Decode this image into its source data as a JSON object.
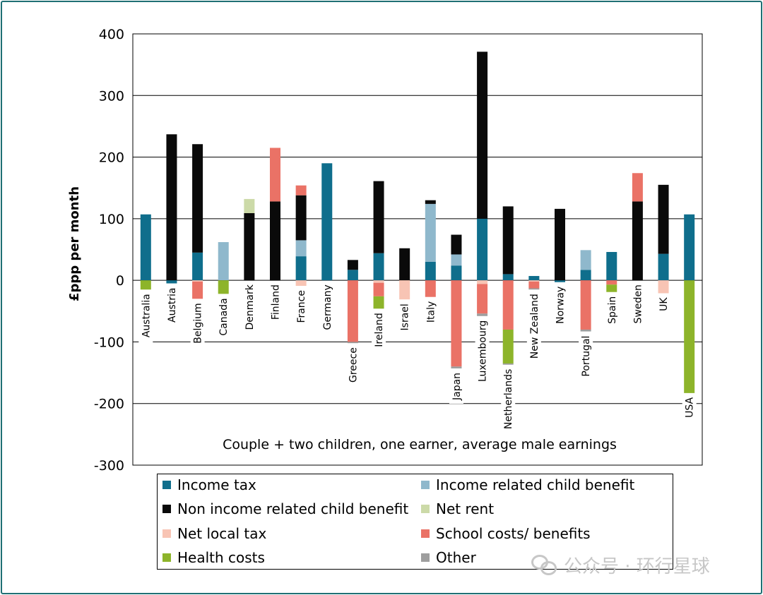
{
  "chart_data": {
    "type": "bar",
    "stacked": true,
    "ylabel": "£ppp per month",
    "subtitle": "Couple + two children, one earner, average male earnings",
    "ylim": [
      -300,
      400
    ],
    "yticks": [
      400,
      300,
      200,
      100,
      0,
      -100,
      -200,
      -300
    ],
    "ytick_labels": [
      "400",
      "300",
      "200",
      "100",
      "0",
      "-100",
      "-200",
      "-300"
    ],
    "grid": true,
    "categories": [
      "Australia",
      "Austria",
      "Belgium",
      "Canada",
      "Denmark",
      "Finland",
      "France",
      "Germany",
      "Greece",
      "Ireland",
      "Israel",
      "Italy",
      "Japan",
      "Luxembourg",
      "Netherlands",
      "New Zealand",
      "Norway",
      "Portugal",
      "Spain",
      "Sweden",
      "UK",
      "USA"
    ],
    "series": [
      {
        "name": "Income tax",
        "color": "#0f6e8c",
        "values": [
          107,
          -5,
          45,
          0,
          0,
          0,
          39,
          190,
          17,
          44,
          0,
          30,
          24,
          100,
          10,
          7,
          -3,
          17,
          46,
          0,
          43,
          107
        ]
      },
      {
        "name": "Income related child benefit",
        "color": "#8fb8cc",
        "values": [
          0,
          0,
          0,
          62,
          0,
          0,
          26,
          0,
          0,
          0,
          0,
          94,
          18,
          0,
          0,
          0,
          0,
          32,
          0,
          0,
          0,
          0
        ]
      },
      {
        "name": "Non income related child benefit",
        "color": "#0a0a0a",
        "values": [
          0,
          237,
          176,
          0,
          109,
          128,
          73,
          0,
          16,
          117,
          52,
          6,
          32,
          271,
          110,
          0,
          116,
          0,
          0,
          128,
          112,
          0
        ]
      },
      {
        "name": "Net rent",
        "color": "#ccdaa8",
        "values": [
          0,
          0,
          0,
          0,
          23,
          0,
          0,
          0,
          0,
          0,
          0,
          0,
          0,
          0,
          0,
          0,
          0,
          0,
          0,
          0,
          0,
          0
        ]
      },
      {
        "name": "Net local tax",
        "color": "#f8c4b4",
        "values": [
          0,
          0,
          -2,
          0,
          0,
          0,
          -9,
          0,
          0,
          -4,
          -31,
          0,
          0,
          -6,
          0,
          -2,
          0,
          0,
          0,
          0,
          -21,
          0
        ]
      },
      {
        "name": "School costs/ benefits",
        "color": "#ea7266",
        "values": [
          0,
          0,
          -28,
          0,
          0,
          87,
          16,
          0,
          -100,
          -22,
          0,
          -27,
          -140,
          -48,
          -80,
          -11,
          0,
          -80,
          -7,
          46,
          0,
          0
        ]
      },
      {
        "name": "Health costs",
        "color": "#8db42a",
        "values": [
          -15,
          0,
          0,
          -22,
          0,
          0,
          0,
          0,
          0,
          -20,
          0,
          0,
          0,
          0,
          -55,
          0,
          0,
          0,
          -12,
          0,
          0,
          -183
        ]
      },
      {
        "name": "Other",
        "color": "#9e9e9e",
        "values": [
          0,
          0,
          0,
          0,
          0,
          0,
          0,
          0,
          -2,
          0,
          0,
          0,
          -3,
          -4,
          -2,
          -2,
          0,
          -3,
          0,
          0,
          0,
          0
        ]
      }
    ]
  },
  "legend": {
    "items": [
      {
        "label": "Income tax",
        "color": "#0f6e8c"
      },
      {
        "label": "Income related child benefit",
        "color": "#8fb8cc"
      },
      {
        "label": "Non income related child benefit",
        "color": "#0a0a0a"
      },
      {
        "label": "Net rent",
        "color": "#ccdaa8"
      },
      {
        "label": "Net local tax",
        "color": "#f8c4b4"
      },
      {
        "label": "School costs/ benefits",
        "color": "#ea7266"
      },
      {
        "label": "Health costs",
        "color": "#8db42a"
      },
      {
        "label": "Other",
        "color": "#9e9e9e"
      }
    ]
  },
  "watermark": {
    "text": "公众号 · 环行星球",
    "icon": "wechat-icon"
  }
}
